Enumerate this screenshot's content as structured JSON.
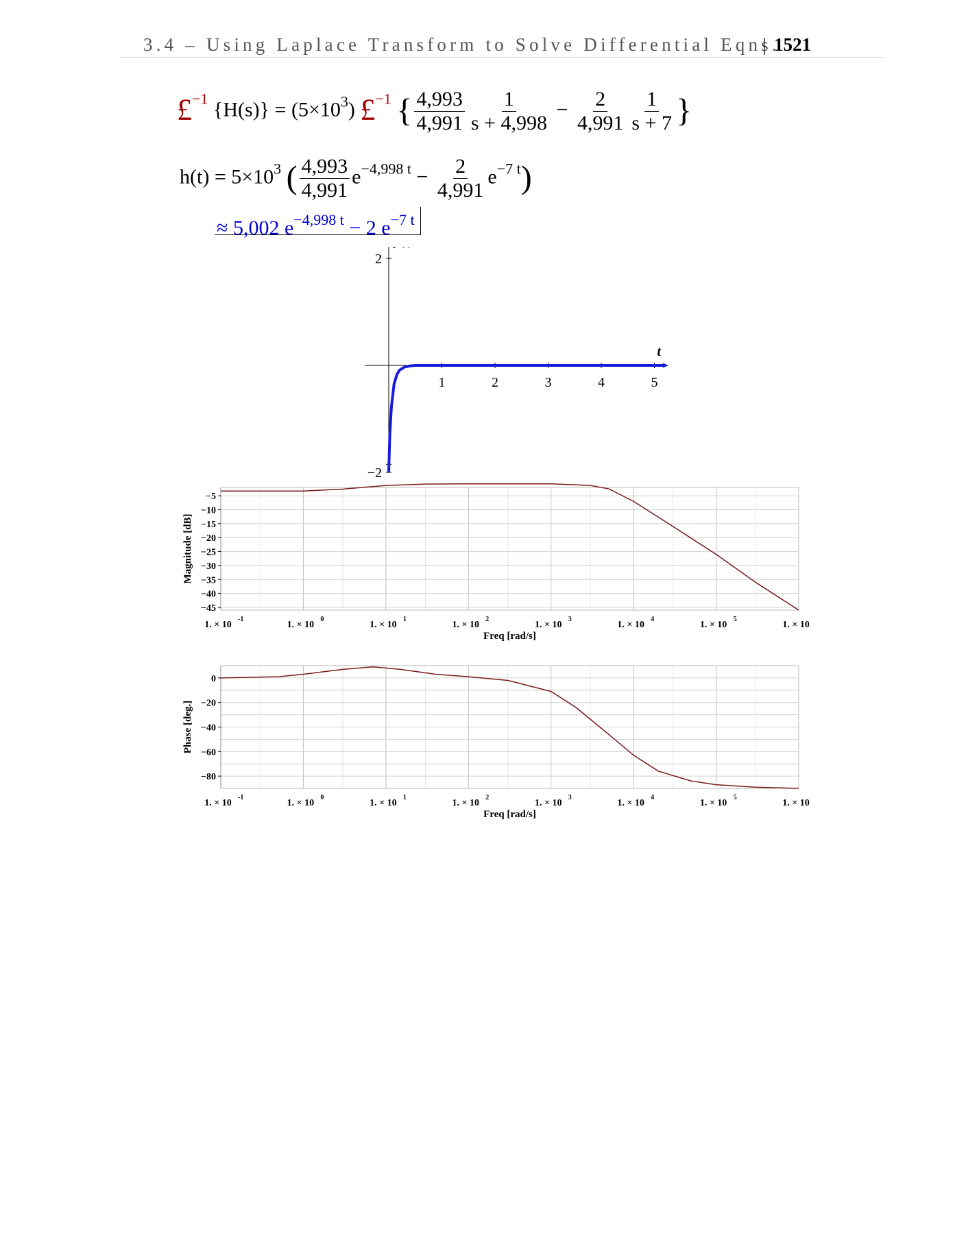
{
  "header": {
    "title": "3.4 – Using Laplace Transform to Solve Differential Eqns.",
    "separator": "|",
    "page": "1521"
  },
  "equations": {
    "line1": {
      "laplace_symbol": "£",
      "inv_exp": "−1",
      "lhs_arg": "{H(s)} =",
      "constant": "(5×10",
      "constant_exp": "3",
      "constant_close": ")",
      "open_brace": "{",
      "frac1_num": "4,993",
      "frac1_den": "4,991",
      "frac2_num": "1",
      "frac2_den": "s + 4,998",
      "minus": "−",
      "frac3_num": "2",
      "frac3_den": "4,991",
      "frac4_num": "1",
      "frac4_den": "s + 7",
      "close_brace": "}"
    },
    "line2": {
      "lhs": "h(t) = 5×10",
      "lhs_exp": "3",
      "open_paren": "(",
      "frac1_num": "4,993",
      "frac1_den": "4,991",
      "e1": "e",
      "e1_exp": "−4,998 t",
      "minus": "−",
      "frac2_num": "2",
      "frac2_den": "4,991",
      "e2": "e",
      "e2_exp": "−7 t",
      "close_paren": ")"
    },
    "line3": {
      "approx": "≈ 5,002 e",
      "e1_exp": "−4,998 t",
      "middle": " − 2 e",
      "e2_exp": "−7 t"
    }
  },
  "chart_data": [
    {
      "type": "line",
      "ylabel": "y(t)",
      "xlabel": "t",
      "xlim": [
        0,
        5.5
      ],
      "ylim": [
        -2.2,
        2.2
      ],
      "x_ticks": [
        1,
        2,
        3,
        4,
        5
      ],
      "y_ticks": [
        -2,
        2
      ],
      "series": [
        {
          "color": "#1a1adc",
          "x": [
            0,
            0.02,
            0.05,
            0.1,
            0.15,
            0.2,
            0.3,
            0.4,
            0.5,
            0.7,
            1.0,
            2.0,
            3.0,
            4.0,
            5.0,
            6.0
          ],
          "y": [
            -2.0,
            -1.3,
            -0.78,
            -0.35,
            -0.18,
            -0.09,
            -0.03,
            -0.01,
            0.0,
            0.0,
            0.0,
            0.0,
            0.0,
            0.0,
            0.0,
            0.0
          ]
        }
      ]
    },
    {
      "type": "line",
      "ylabel": "Magnitude [dB]",
      "xlabel": "Freq [rad/s]",
      "xscale": "log",
      "xlim": [
        0.1,
        1000000
      ],
      "ylim": [
        -46,
        -2
      ],
      "x_tick_labels": [
        "1. × 10",
        "1. × 10",
        "1. × 10",
        "1. × 10",
        "1. × 10",
        "1. × 10",
        "1. × 10",
        "1. × 10"
      ],
      "x_tick_exps": [
        "-1",
        "0",
        "1",
        "2",
        "3",
        "4",
        "5",
        "6"
      ],
      "y_ticks": [
        -5,
        -10,
        -15,
        -20,
        -25,
        -30,
        -35,
        -40,
        -45
      ],
      "grid": true,
      "series": [
        {
          "color": "#7a1a1a",
          "x": [
            0.1,
            1,
            3,
            10,
            30,
            100,
            300,
            1000,
            3000,
            5000,
            10000,
            30000,
            100000,
            300000,
            1000000
          ],
          "y": [
            -3.3,
            -3.3,
            -2.6,
            -1.3,
            -0.8,
            -0.7,
            -0.7,
            -0.7,
            -1.3,
            -2.5,
            -7,
            -16,
            -26,
            -36,
            -46
          ]
        }
      ]
    },
    {
      "type": "line",
      "ylabel": "Phase [deg.]",
      "xlabel": "Freq [rad/s]",
      "xscale": "log",
      "xlim": [
        0.1,
        1000000
      ],
      "ylim": [
        -90,
        10
      ],
      "x_tick_labels": [
        "1. × 10",
        "1. × 10",
        "1. × 10",
        "1. × 10",
        "1. × 10",
        "1. × 10",
        "1. × 10",
        "1. × 10"
      ],
      "x_tick_exps": [
        "-1",
        "0",
        "1",
        "2",
        "3",
        "4",
        "5",
        "6"
      ],
      "y_ticks": [
        0,
        -20,
        -40,
        -60,
        -80
      ],
      "grid": true,
      "series": [
        {
          "color": "#7a1a1a",
          "x": [
            0.1,
            0.5,
            1,
            3,
            7,
            15,
            40,
            100,
            300,
            1000,
            2000,
            5000,
            10000,
            20000,
            50000,
            100000,
            300000,
            1000000
          ],
          "y": [
            0,
            1,
            3,
            7,
            9,
            7,
            3,
            1,
            -2,
            -11,
            -24,
            -46,
            -63,
            -76,
            -84,
            -87,
            -89,
            -90
          ]
        }
      ]
    }
  ]
}
